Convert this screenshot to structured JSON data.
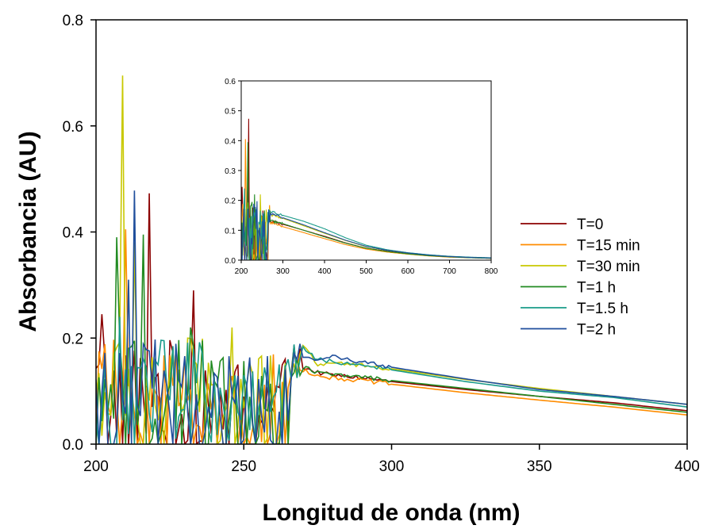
{
  "chart_data": {
    "type": "line",
    "title": "",
    "xlabel": "Longitud de onda (nm)",
    "ylabel": "Absorbancia (AU)",
    "xlim": [
      200,
      400
    ],
    "ylim": [
      0,
      0.8
    ],
    "xticks": [
      200,
      250,
      300,
      350,
      400
    ],
    "yticks": [
      0.0,
      0.2,
      0.4,
      0.6,
      0.8
    ],
    "xtick_labels": [
      "200",
      "250",
      "300",
      "350",
      "400"
    ],
    "ytick_labels": [
      "0.0",
      "0.2",
      "0.4",
      "0.6",
      "0.8"
    ],
    "grid": false,
    "legend_position": "right",
    "series": [
      {
        "name": "T=0",
        "color": "#8b0000",
        "peaks": [
          [
            202,
            0.245
          ],
          [
            218,
            0.473
          ],
          [
            233,
            0.29
          ],
          [
            248,
            0.15
          ],
          [
            266,
            0.2
          ]
        ],
        "x": [
          270,
          275,
          280,
          290,
          300,
          325,
          350,
          375,
          400
        ],
        "values": [
          0.145,
          0.135,
          0.13,
          0.125,
          0.118,
          0.103,
          0.09,
          0.078,
          0.063
        ]
      },
      {
        "name": "T=15 min",
        "color": "#ff8c00",
        "peaks": [
          [
            201,
            0.175
          ],
          [
            210,
            0.405
          ],
          [
            226,
            0.11
          ],
          [
            245,
            0.1
          ],
          [
            266,
            0.19
          ]
        ],
        "x": [
          270,
          275,
          280,
          290,
          300,
          325,
          350,
          375,
          400
        ],
        "values": [
          0.14,
          0.13,
          0.125,
          0.12,
          0.113,
          0.097,
          0.083,
          0.07,
          0.055
        ]
      },
      {
        "name": "T=30 min",
        "color": "#c8c800",
        "peaks": [
          [
            209,
            0.695
          ],
          [
            213,
            0.38
          ],
          [
            231,
            0.2
          ],
          [
            246,
            0.22
          ],
          [
            267,
            0.205
          ]
        ],
        "x": [
          270,
          275,
          280,
          290,
          300,
          325,
          350,
          375,
          400
        ],
        "values": [
          0.19,
          0.15,
          0.155,
          0.148,
          0.142,
          0.122,
          0.105,
          0.09,
          0.075
        ]
      },
      {
        "name": "T=1 h",
        "color": "#228b22",
        "peaks": [
          [
            207,
            0.39
          ],
          [
            216,
            0.395
          ],
          [
            232,
            0.22
          ],
          [
            247,
            0.12
          ],
          [
            266,
            0.19
          ]
        ],
        "x": [
          270,
          275,
          280,
          290,
          300,
          325,
          350,
          375,
          400
        ],
        "values": [
          0.145,
          0.135,
          0.13,
          0.127,
          0.12,
          0.105,
          0.09,
          0.075,
          0.06
        ]
      },
      {
        "name": "T=1.5 h",
        "color": "#1a9b8a",
        "peaks": [
          [
            208,
            0.24
          ],
          [
            223,
            0.195
          ],
          [
            236,
            0.17
          ],
          [
            250,
            0.13
          ],
          [
            266,
            0.185
          ]
        ],
        "x": [
          270,
          275,
          280,
          290,
          300,
          325,
          350,
          375,
          400
        ],
        "values": [
          0.18,
          0.16,
          0.155,
          0.15,
          0.14,
          0.118,
          0.1,
          0.088,
          0.07
        ]
      },
      {
        "name": "T=2 h",
        "color": "#1f4e9c",
        "peaks": [
          [
            213,
            0.478
          ],
          [
            211,
            0.31
          ],
          [
            228,
            0.12
          ],
          [
            251,
            0.11
          ],
          [
            266,
            0.16
          ]
        ],
        "x": [
          270,
          275,
          280,
          290,
          300,
          325,
          350,
          375,
          400
        ],
        "values": [
          0.16,
          0.162,
          0.165,
          0.155,
          0.145,
          0.123,
          0.103,
          0.09,
          0.075
        ]
      }
    ],
    "inset": {
      "xlim": [
        200,
        800
      ],
      "ylim": [
        0,
        0.6
      ],
      "xticks": [
        200,
        300,
        400,
        500,
        600,
        700,
        800
      ],
      "yticks": [
        0.0,
        0.1,
        0.2,
        0.3,
        0.4,
        0.5,
        0.6
      ],
      "xtick_labels": [
        "200",
        "300",
        "400",
        "500",
        "600",
        "700",
        "800"
      ],
      "ytick_labels": [
        "0.0",
        "0.1",
        "0.2",
        "0.3",
        "0.4",
        "0.5",
        "0.6"
      ],
      "decay_x": [
        275,
        300,
        350,
        400,
        450,
        500,
        550,
        600,
        650,
        700,
        750,
        800
      ],
      "series": [
        {
          "values": [
            0.13,
            0.12,
            0.1,
            0.08,
            0.058,
            0.04,
            0.03,
            0.022,
            0.016,
            0.012,
            0.009,
            0.007
          ]
        },
        {
          "values": [
            0.125,
            0.112,
            0.092,
            0.072,
            0.052,
            0.037,
            0.027,
            0.02,
            0.014,
            0.01,
            0.008,
            0.006
          ]
        },
        {
          "values": [
            0.15,
            0.14,
            0.115,
            0.09,
            0.066,
            0.045,
            0.033,
            0.024,
            0.017,
            0.012,
            0.009,
            0.007
          ]
        },
        {
          "values": [
            0.13,
            0.122,
            0.1,
            0.078,
            0.057,
            0.04,
            0.029,
            0.021,
            0.015,
            0.011,
            0.008,
            0.006
          ]
        },
        {
          "values": [
            0.16,
            0.15,
            0.13,
            0.105,
            0.075,
            0.05,
            0.035,
            0.025,
            0.018,
            0.013,
            0.01,
            0.008
          ]
        },
        {
          "values": [
            0.155,
            0.142,
            0.118,
            0.092,
            0.067,
            0.046,
            0.033,
            0.024,
            0.017,
            0.012,
            0.009,
            0.007
          ]
        }
      ]
    }
  }
}
